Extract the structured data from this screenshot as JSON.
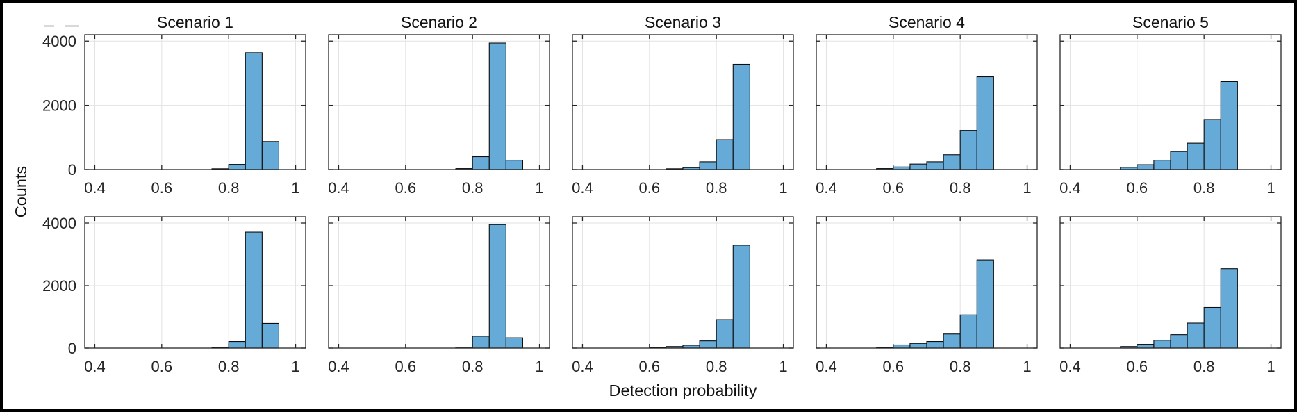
{
  "figure": {
    "ylabel": "Counts",
    "xlabel": "Detection probability",
    "column_titles": [
      "Scenario 1",
      "Scenario 2",
      "Scenario 3",
      "Scenario 4",
      "Scenario 5"
    ]
  },
  "chart_data": {
    "type": "bar",
    "subtype": "histogram_small_multiples",
    "grid": true,
    "n_rows": 2,
    "n_cols": 5,
    "bin_width": 0.05,
    "xlabel": "Detection probability",
    "ylabel": "Counts",
    "x_ticks": [
      "0.4",
      "0.6",
      "0.8",
      "1"
    ],
    "x_tick_values": [
      0.4,
      0.6,
      0.8,
      1.0
    ],
    "y_ticks": [
      "0",
      "2000",
      "4000"
    ],
    "y_tick_values": [
      0,
      2000,
      4000
    ],
    "xlim": [
      0.37,
      1.03
    ],
    "ylim": [
      0,
      4200
    ],
    "bar_face_color": "#66AAD7",
    "bar_edge_color": "#0d0d0d",
    "grid_color": "#E2E2E2",
    "axis_color": "#262626",
    "text_color": "#262626",
    "column_titles": [
      "Scenario 1",
      "Scenario 2",
      "Scenario 3",
      "Scenario 4",
      "Scenario 5"
    ],
    "plots": [
      {
        "row": 1,
        "col": 1,
        "title": "Scenario 1",
        "bin_starts": [
          0.75,
          0.8,
          0.85,
          0.9
        ],
        "counts": [
          25,
          160,
          3640,
          870
        ]
      },
      {
        "row": 1,
        "col": 2,
        "title": "Scenario 2",
        "bin_starts": [
          0.75,
          0.8,
          0.85,
          0.9
        ],
        "counts": [
          30,
          400,
          3940,
          290
        ]
      },
      {
        "row": 1,
        "col": 3,
        "title": "Scenario 3",
        "bin_starts": [
          0.65,
          0.7,
          0.75,
          0.8,
          0.85
        ],
        "counts": [
          25,
          60,
          240,
          930,
          3280
        ]
      },
      {
        "row": 1,
        "col": 4,
        "title": "Scenario 4",
        "bin_starts": [
          0.55,
          0.6,
          0.65,
          0.7,
          0.75,
          0.8,
          0.85
        ],
        "counts": [
          30,
          80,
          170,
          240,
          460,
          1220,
          2890
        ]
      },
      {
        "row": 1,
        "col": 5,
        "title": "Scenario 5",
        "bin_starts": [
          0.55,
          0.6,
          0.65,
          0.7,
          0.75,
          0.8,
          0.85
        ],
        "counts": [
          70,
          150,
          290,
          560,
          820,
          1560,
          2740
        ]
      },
      {
        "row": 2,
        "col": 1,
        "title": "Scenario 1",
        "bin_starts": [
          0.75,
          0.8,
          0.85,
          0.9
        ],
        "counts": [
          25,
          210,
          3710,
          790
        ]
      },
      {
        "row": 2,
        "col": 2,
        "title": "Scenario 2",
        "bin_starts": [
          0.75,
          0.8,
          0.85,
          0.9
        ],
        "counts": [
          30,
          380,
          3950,
          330
        ]
      },
      {
        "row": 2,
        "col": 3,
        "title": "Scenario 3",
        "bin_starts": [
          0.6,
          0.65,
          0.7,
          0.75,
          0.8,
          0.85
        ],
        "counts": [
          20,
          50,
          90,
          230,
          910,
          3290
        ]
      },
      {
        "row": 2,
        "col": 4,
        "title": "Scenario 4",
        "bin_starts": [
          0.55,
          0.6,
          0.65,
          0.7,
          0.75,
          0.8,
          0.85
        ],
        "counts": [
          20,
          100,
          150,
          210,
          450,
          1060,
          2820
        ]
      },
      {
        "row": 2,
        "col": 5,
        "title": "Scenario 5",
        "bin_starts": [
          0.55,
          0.6,
          0.65,
          0.7,
          0.75,
          0.8,
          0.85
        ],
        "counts": [
          50,
          120,
          250,
          430,
          800,
          1300,
          2540
        ]
      }
    ]
  }
}
